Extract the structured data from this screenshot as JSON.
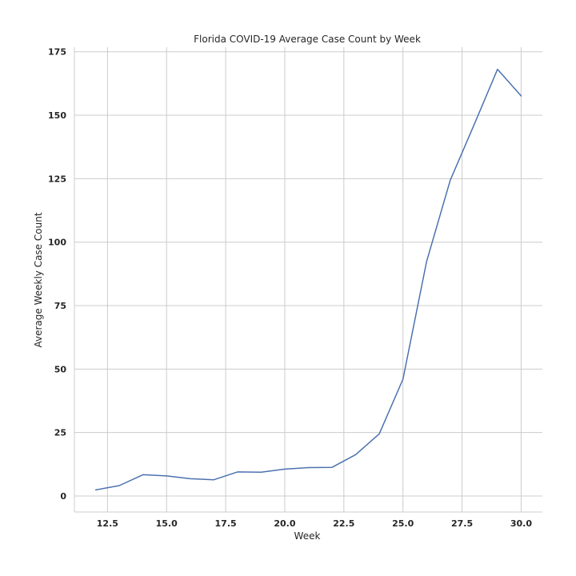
{
  "chart_data": {
    "type": "line",
    "title": "Florida COVID-19 Average Case Count by Week",
    "xlabel": "Week",
    "ylabel": "Average Weekly Case Count",
    "xlim": [
      11.1,
      30.9
    ],
    "ylim": [
      -6.3,
      176.8
    ],
    "x_ticks": [
      12.5,
      15.0,
      17.5,
      20.0,
      22.5,
      25.0,
      27.5,
      30.0
    ],
    "x_tick_labels": [
      "12.5",
      "15.0",
      "17.5",
      "20.0",
      "22.5",
      "25.0",
      "27.5",
      "30.0"
    ],
    "y_ticks": [
      0,
      25,
      50,
      75,
      100,
      125,
      150,
      175
    ],
    "y_tick_labels": [
      "0",
      "25",
      "50",
      "75",
      "100",
      "125",
      "150",
      "175"
    ],
    "grid": true,
    "line_color": "#4c72b0",
    "grid_color": "#cccccc",
    "spine_color": "#cccccc",
    "series": [
      {
        "x": [
          12,
          13,
          14,
          15,
          16,
          17,
          18,
          19,
          20,
          21,
          22,
          23,
          24,
          25,
          26,
          27,
          28,
          29,
          30
        ],
        "values": [
          2.4,
          4.1,
          8.4,
          7.9,
          6.8,
          6.4,
          9.5,
          9.4,
          10.6,
          11.2,
          11.3,
          16.3,
          24.5,
          46.0,
          92.3,
          124.4,
          146.0,
          168.1,
          157.6
        ]
      }
    ]
  }
}
